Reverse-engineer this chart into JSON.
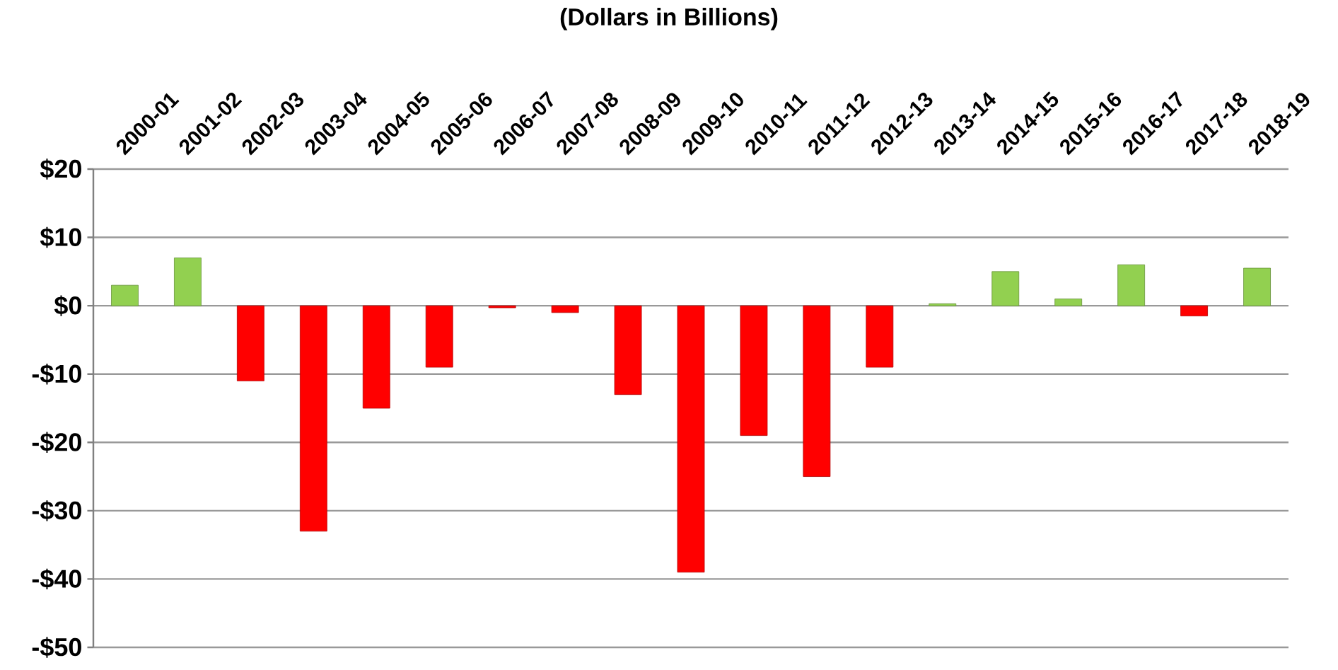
{
  "chart_data": {
    "type": "bar",
    "title": "(Dollars in Billions)",
    "categories": [
      "2000-01",
      "2001-02",
      "2002-03",
      "2003-04",
      "2004-05",
      "2005-06",
      "2006-07",
      "2007-08",
      "2008-09",
      "2009-10",
      "2010-11",
      "2011-12",
      "2012-13",
      "2013-14",
      "2014-15",
      "2015-16",
      "2016-17",
      "2017-18",
      "2018-19"
    ],
    "values": [
      3,
      7,
      -11,
      -33,
      -15,
      -9,
      -0.3,
      -1,
      -13,
      -39,
      -19,
      -25,
      -9,
      0.3,
      5,
      1,
      6,
      -1.5,
      5.5
    ],
    "colors": [
      "#92d050",
      "#92d050",
      "#ff0000",
      "#ff0000",
      "#ff0000",
      "#ff0000",
      "#ff0000",
      "#ff0000",
      "#ff0000",
      "#ff0000",
      "#ff0000",
      "#ff0000",
      "#ff0000",
      "#92d050",
      "#92d050",
      "#92d050",
      "#92d050",
      "#ff0000",
      "#92d050"
    ],
    "ylim": [
      -50,
      20
    ],
    "yticks": [
      {
        "value": 20,
        "label": "$20"
      },
      {
        "value": 10,
        "label": "$10"
      },
      {
        "value": 0,
        "label": "$0"
      },
      {
        "value": -10,
        "label": "-$10"
      },
      {
        "value": -20,
        "label": "-$20"
      },
      {
        "value": -30,
        "label": "-$30"
      },
      {
        "value": -40,
        "label": "-$40"
      },
      {
        "value": -50,
        "label": "-$50"
      }
    ],
    "grid": "y"
  }
}
